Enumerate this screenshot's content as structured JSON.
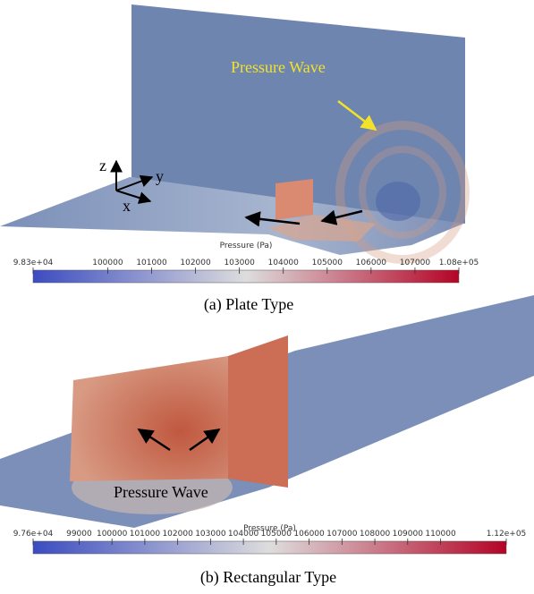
{
  "panels": [
    {
      "annotations": {
        "wave": "Pressure Wave",
        "axis_z": "z",
        "axis_y": "y",
        "axis_x": "x"
      },
      "colorbar": {
        "title": "Pressure (Pa)",
        "range": [
          98300,
          108000
        ],
        "ticks": [
          {
            "value": 98300,
            "label": "9.83e+04"
          },
          100000,
          101000,
          102000,
          103000,
          104000,
          105000,
          106000,
          107000,
          {
            "value": 108000,
            "label": "1.08e+05"
          }
        ]
      },
      "caption": "(a) Plate Type"
    },
    {
      "annotations": {
        "wave": "Pressure Wave"
      },
      "colorbar": {
        "title": "Pressure (Pa)",
        "range": [
          97600,
          112000
        ],
        "ticks": [
          {
            "value": 97600,
            "label": "9.76e+04"
          },
          99000,
          100000,
          101000,
          102000,
          103000,
          104000,
          105000,
          106000,
          107000,
          108000,
          109000,
          110000,
          {
            "value": 112000,
            "label": "1.12e+05"
          }
        ]
      },
      "caption": "(b) Rectangular Type"
    }
  ]
}
